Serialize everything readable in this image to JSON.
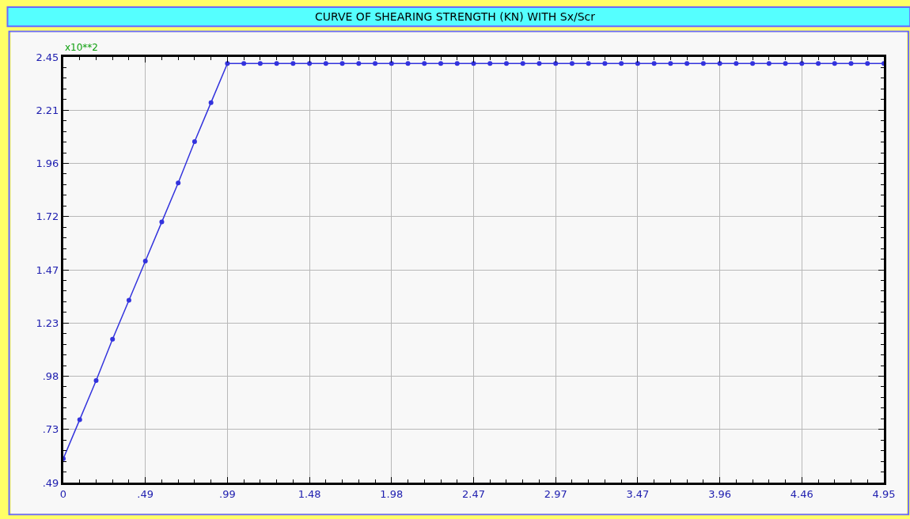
{
  "chart_data": {
    "type": "line",
    "title": "CURVE OF SHEARING STRENGTH (KN) WITH Sx/Scr",
    "annotations": [
      "x10**2"
    ],
    "x": [
      0,
      0.099,
      0.198,
      0.297,
      0.396,
      0.495,
      0.594,
      0.693,
      0.792,
      0.891,
      0.99,
      1.089,
      1.188,
      1.287,
      1.386,
      1.485,
      1.584,
      1.683,
      1.782,
      1.881,
      1.98,
      2.079,
      2.178,
      2.277,
      2.376,
      2.475,
      2.574,
      2.673,
      2.772,
      2.871,
      2.97,
      3.069,
      3.168,
      3.267,
      3.366,
      3.465,
      3.564,
      3.663,
      3.762,
      3.861,
      3.96,
      4.059,
      4.158,
      4.257,
      4.356,
      4.455,
      4.554,
      4.653,
      4.752,
      4.851,
      4.95
    ],
    "series": [
      {
        "color": "#3333dd",
        "values": [
          0.6,
          0.78,
          0.96,
          1.15,
          1.33,
          1.51,
          1.69,
          1.87,
          2.06,
          2.24,
          2.42,
          2.42,
          2.42,
          2.42,
          2.42,
          2.42,
          2.42,
          2.42,
          2.42,
          2.42,
          2.42,
          2.42,
          2.42,
          2.42,
          2.42,
          2.42,
          2.42,
          2.42,
          2.42,
          2.42,
          2.42,
          2.42,
          2.42,
          2.42,
          2.42,
          2.42,
          2.42,
          2.42,
          2.42,
          2.42,
          2.42,
          2.42,
          2.42,
          2.42,
          2.42,
          2.42,
          2.42,
          2.42,
          2.42,
          2.42,
          2.42
        ]
      }
    ],
    "xlim": [
      0,
      4.95
    ],
    "ylim": [
      0.49,
      2.45
    ],
    "xticks": [
      0,
      {
        "value": 0.495,
        "label": ".49"
      },
      {
        "value": 0.99,
        "label": ".99"
      },
      {
        "value": 1.485,
        "label": "1.48"
      },
      1.98,
      {
        "value": 2.475,
        "label": "2.47"
      },
      2.97,
      {
        "value": 3.465,
        "label": "3.47"
      },
      3.96,
      {
        "value": 4.455,
        "label": "4.46"
      },
      4.95
    ],
    "yticks": [
      {
        "value": 0.49,
        "label": ".49"
      },
      {
        "value": 0.735,
        "label": ".73"
      },
      {
        "value": 0.98,
        "label": ".98"
      },
      {
        "value": 1.225,
        "label": "1.23"
      },
      1.47,
      {
        "value": 1.715,
        "label": "1.72"
      },
      1.96,
      {
        "value": 2.205,
        "label": "2.21"
      },
      2.45
    ],
    "grid": true,
    "marker": "circle",
    "line_style": "solid"
  }
}
